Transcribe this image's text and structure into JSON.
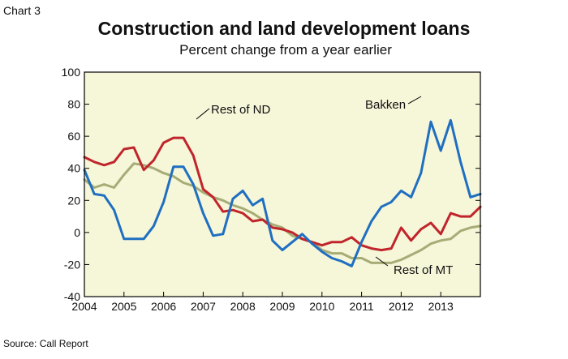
{
  "chart_number": "Chart 3",
  "source": "Source: Call Report",
  "colors": {
    "background": "#ffffff",
    "plot_background": "#f6f6d9",
    "border": "#000000"
  },
  "chart_data": {
    "type": "line",
    "title": "Construction and land development loans",
    "subtitle": "Percent change from a year earlier",
    "xlabel": "",
    "ylabel": "",
    "xlim": [
      2004,
      2014
    ],
    "ylim": [
      -40,
      100
    ],
    "x_ticks": [
      "2004",
      "2005",
      "2006",
      "2007",
      "2008",
      "2009",
      "2010",
      "2011",
      "2012",
      "2013"
    ],
    "y_ticks": [
      "100",
      "80",
      "60",
      "40",
      "20",
      "0",
      "-20",
      "-40"
    ],
    "grid": false,
    "series": [
      {
        "name": "Bakken",
        "color": "#1f6fc1",
        "x": [
          2004.0,
          2004.25,
          2004.5,
          2004.75,
          2005.0,
          2005.25,
          2005.5,
          2005.75,
          2006.0,
          2006.25,
          2006.5,
          2006.75,
          2007.0,
          2007.25,
          2007.5,
          2007.75,
          2008.0,
          2008.25,
          2008.5,
          2008.75,
          2009.0,
          2009.25,
          2009.5,
          2009.75,
          2010.0,
          2010.25,
          2010.5,
          2010.75,
          2011.0,
          2011.25,
          2011.5,
          2011.75,
          2012.0,
          2012.25,
          2012.5,
          2012.75,
          2013.0,
          2013.25,
          2013.5,
          2013.75,
          2014.0
        ],
        "values": [
          39,
          24,
          23,
          14,
          -4,
          -4,
          -4,
          4,
          19,
          41,
          41,
          30,
          12,
          -2,
          -1,
          21,
          26,
          17,
          21,
          -5,
          -11,
          -6,
          -1,
          -7,
          -12,
          -16,
          -18,
          -21,
          -6,
          7,
          16,
          19,
          26,
          22,
          37,
          69,
          51,
          70,
          44,
          22,
          24
        ]
      },
      {
        "name": "Rest of ND",
        "color": "#c0252b",
        "x": [
          2004.0,
          2004.25,
          2004.5,
          2004.75,
          2005.0,
          2005.25,
          2005.5,
          2005.75,
          2006.0,
          2006.25,
          2006.5,
          2006.75,
          2007.0,
          2007.25,
          2007.5,
          2007.75,
          2008.0,
          2008.25,
          2008.5,
          2008.75,
          2009.0,
          2009.25,
          2009.5,
          2009.75,
          2010.0,
          2010.25,
          2010.5,
          2010.75,
          2011.0,
          2011.25,
          2011.5,
          2011.75,
          2012.0,
          2012.25,
          2012.5,
          2012.75,
          2013.0,
          2013.25,
          2013.5,
          2013.75,
          2014.0
        ],
        "values": [
          47,
          44,
          42,
          44,
          52,
          53,
          39,
          45,
          56,
          59,
          59,
          48,
          27,
          22,
          13,
          14,
          12,
          7,
          8,
          3,
          2,
          0,
          -4,
          -6,
          -8,
          -6,
          -6,
          -3,
          -8,
          -10,
          -11,
          -10,
          3,
          -5,
          2,
          6,
          -1,
          12,
          10,
          10,
          16
        ]
      },
      {
        "name": "Rest of MT",
        "color": "#a6ac76",
        "x": [
          2004.0,
          2004.25,
          2004.5,
          2004.75,
          2005.0,
          2005.25,
          2005.5,
          2005.75,
          2006.0,
          2006.25,
          2006.5,
          2006.75,
          2007.0,
          2007.25,
          2007.5,
          2007.75,
          2008.0,
          2008.25,
          2008.5,
          2008.75,
          2009.0,
          2009.25,
          2009.5,
          2009.75,
          2010.0,
          2010.25,
          2010.5,
          2010.75,
          2011.0,
          2011.25,
          2011.5,
          2011.75,
          2012.0,
          2012.25,
          2012.5,
          2012.75,
          2013.0,
          2013.25,
          2013.5,
          2013.75,
          2014.0
        ],
        "values": [
          33,
          28,
          30,
          28,
          36,
          43,
          42,
          40,
          37,
          35,
          31,
          29,
          25,
          22,
          20,
          17,
          15,
          12,
          8,
          5,
          3,
          -2,
          -4,
          -6,
          -11,
          -13,
          -13,
          -16,
          -16,
          -19,
          -19,
          -19,
          -17,
          -14,
          -11,
          -7,
          -5,
          -4,
          1,
          3,
          4
        ]
      }
    ],
    "series_labels": [
      {
        "name": "Bakken",
        "text": "Bakken"
      },
      {
        "name": "Rest of ND",
        "text": "Rest of ND"
      },
      {
        "name": "Rest of MT",
        "text": "Rest of MT"
      }
    ]
  }
}
